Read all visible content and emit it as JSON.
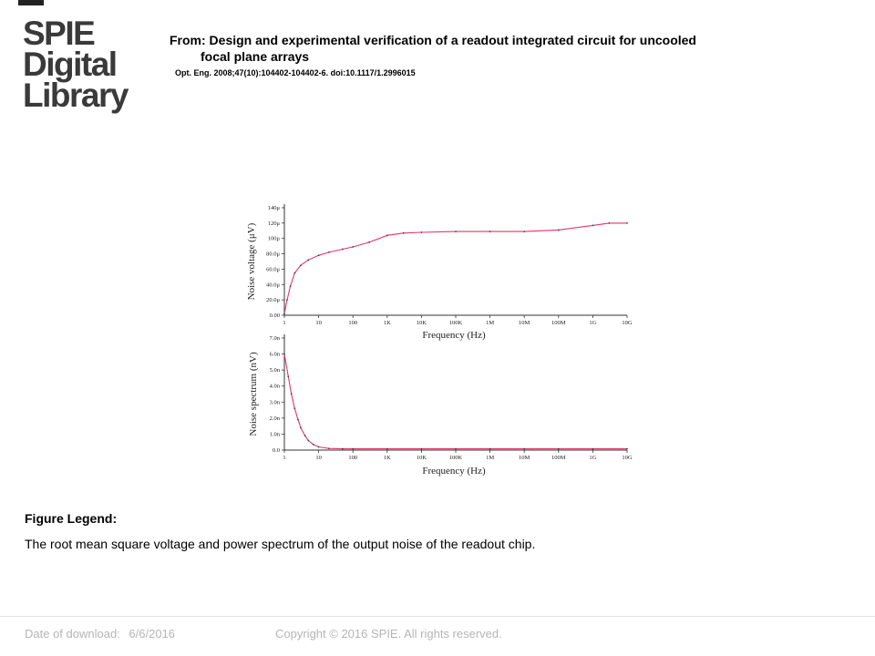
{
  "logo": {
    "line1": "SPIE",
    "line2": "Digital",
    "line3": "Library"
  },
  "header": {
    "from_line1": "From: Design and experimental verification of a readout integrated circuit for uncooled",
    "from_line2": "focal plane arrays",
    "citation": "Opt. Eng. 2008;47(10):104402-104402-6. doi:10.1117/1.2996015"
  },
  "legend": {
    "title": "Figure Legend:",
    "text": "The root mean square voltage and power spectrum of the output noise of the readout chip."
  },
  "footer": {
    "date_label": "Date of download:",
    "date_value": "6/6/2016",
    "copyright": "Copyright © 2016 SPIE. All rights reserved."
  },
  "colors": {
    "curve": "#e8336a",
    "logo": "#3a3a3a",
    "footer": "#b5b5b5"
  },
  "chart_data": [
    {
      "type": "line",
      "xscale": "log",
      "xlabel": "Frequency (Hz)",
      "ylabel": "Noise voltage (μV)",
      "xticks": [
        "1",
        "10",
        "100",
        "1K",
        "10K",
        "100K",
        "1M",
        "10M",
        "100M",
        "1G",
        "10G"
      ],
      "yticks": [
        "0.00",
        "20.0μ",
        "40.0μ",
        "60.0μ",
        "80.0μ",
        "100μ",
        "120μ",
        "140μ"
      ],
      "ylim": [
        0,
        140
      ],
      "series": [
        {
          "x": [
            1,
            1.2,
            1.5,
            2,
            3,
            5,
            10,
            20,
            50,
            100,
            300,
            1000,
            3000,
            10000,
            100000,
            1000000,
            10000000,
            100000000,
            1000000000,
            3000000000,
            10000000000
          ],
          "y": [
            2,
            20,
            38,
            55,
            65,
            72,
            78,
            82,
            86,
            89,
            95,
            104,
            107,
            108,
            109,
            109,
            109,
            111,
            117,
            120,
            120
          ]
        }
      ]
    },
    {
      "type": "line",
      "xscale": "log",
      "xlabel": "Frequency (Hz)",
      "ylabel": "Noise spectrum (nV)",
      "xticks": [
        "1",
        "10",
        "100",
        "1K",
        "10K",
        "100K",
        "1M",
        "10M",
        "100M",
        "1G",
        "10G"
      ],
      "yticks": [
        "0.0",
        "1.0n",
        "2.0n",
        "3.0n",
        "4.0n",
        "5.0n",
        "6.0n",
        "7.0n"
      ],
      "ylim": [
        0,
        7
      ],
      "series": [
        {
          "x": [
            1,
            1.3,
            1.6,
            2,
            2.5,
            3,
            4,
            5,
            7,
            10,
            20,
            50,
            100,
            1000,
            10000,
            100000,
            1000000,
            10000000,
            100000000,
            1000000000,
            10000000000
          ],
          "y": [
            6.0,
            4.6,
            3.5,
            2.6,
            1.9,
            1.4,
            0.9,
            0.6,
            0.35,
            0.2,
            0.1,
            0.08,
            0.08,
            0.08,
            0.08,
            0.08,
            0.08,
            0.08,
            0.08,
            0.08,
            0.08
          ]
        }
      ]
    }
  ]
}
